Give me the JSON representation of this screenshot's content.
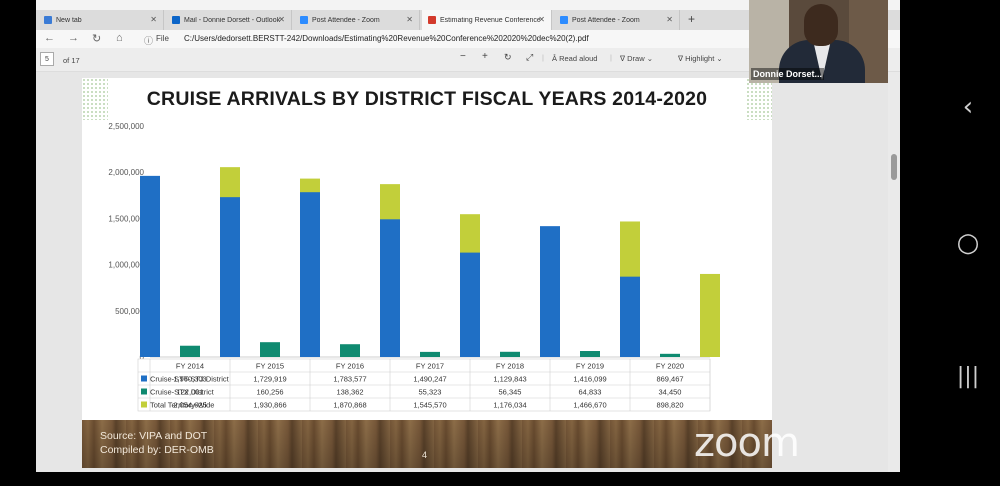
{
  "tabs": [
    {
      "label": "New tab",
      "icon": "edge-icon",
      "color": "#3a7bd5"
    },
    {
      "label": "Mail - Donnie Dorsett - Outlook",
      "icon": "outlook-icon",
      "color": "#0a64c8"
    },
    {
      "label": "Post Attendee - Zoom",
      "icon": "zoom-icon",
      "color": "#2d8cff"
    },
    {
      "label": "Estimating Revenue Conference",
      "icon": "pdf-icon",
      "color": "#d33a2c"
    },
    {
      "label": "Post Attendee - Zoom",
      "icon": "zoom-icon",
      "color": "#2d8cff"
    }
  ],
  "address": {
    "file_label": "File",
    "url": "C:/Users/dedorsett.BERSTT-242/Downloads/Estimating%20Revenue%20Conference%202020%20dec%20(2).pdf"
  },
  "pdf_toolbar": {
    "page": "5",
    "total": "of 17",
    "read_aloud": "Read aloud",
    "draw": "Draw",
    "highlight": "Highlight"
  },
  "webcam": {
    "name": "Donnie Dorset..."
  },
  "slide": {
    "source": "Source: VIPA and DOT",
    "compiled": "Compiled by: DER-OMB",
    "number": "4"
  },
  "watermark": "zoom",
  "chart_data": {
    "type": "bar",
    "title": "CRUISE ARRIVALS BY DISTRICT FISCAL YEARS 2014-2020",
    "categories": [
      "FY 2014",
      "FY 2015",
      "FY 2016",
      "FY 2017",
      "FY 2018",
      "FY 2019",
      "FY 2020"
    ],
    "series": [
      {
        "name": "Cruise-STT-STJ District",
        "color": "#1f6fc5",
        "values": [
          1960303,
          1729919,
          1783577,
          1490247,
          1129843,
          1416099,
          869467
        ],
        "labels": [
          "1,960,303",
          "1,729,919",
          "1,783,577",
          "1,490,247",
          "1,129,843",
          "1,416,099",
          "869,467"
        ]
      },
      {
        "name": "Cruise-STX District",
        "color": "#0f8a70",
        "values": [
          122001,
          160256,
          138362,
          55323,
          56345,
          64833,
          34450
        ],
        "labels": [
          "122,001",
          "160,256",
          "138,362",
          "55,323",
          "56,345",
          "64,833",
          "34,450"
        ]
      },
      {
        "name": "Total Territory-Wide",
        "color": "#c2cf3a",
        "values": [
          2054625,
          1930866,
          1870868,
          1545570,
          1176034,
          1466670,
          898820
        ],
        "labels": [
          "2,054,625",
          "1,930,866",
          "1,870,868",
          "1,545,570",
          "1,176,034",
          "1,466,670",
          "898,820"
        ]
      }
    ],
    "yticks": [
      "0",
      "500,000",
      "1,000,000",
      "1,500,000",
      "2,000,000",
      "2,500,000"
    ],
    "ylim": [
      0,
      2500000
    ],
    "grid": false,
    "legend": "data table"
  }
}
